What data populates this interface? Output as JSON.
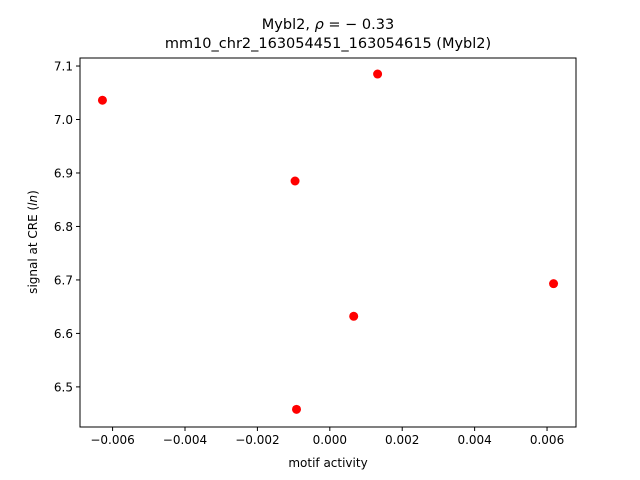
{
  "chart_data": {
    "type": "scatter",
    "title_line1_prefix": "Mybl2, ",
    "title_line1_rho": "ρ",
    "title_line1_suffix": " = − 0.33",
    "title_line2": "mm10_chr2_163054451_163054615 (Mybl2)",
    "xlabel": "motif activity",
    "ylabel_prefix": "signal at CRE (",
    "ylabel_italic": "ln",
    "ylabel_suffix": ")",
    "xlim": [
      -0.0069,
      0.0068
    ],
    "ylim": [
      6.425,
      7.115
    ],
    "x_ticks": [
      -0.006,
      -0.004,
      -0.002,
      0.0,
      0.002,
      0.004,
      0.006
    ],
    "x_tick_labels": [
      "−0.006",
      "−0.004",
      "−0.002",
      "0.000",
      "0.002",
      "0.004",
      "0.006"
    ],
    "y_ticks": [
      6.5,
      6.6,
      6.7,
      6.8,
      6.9,
      7.0,
      7.1
    ],
    "y_tick_labels": [
      "6.5",
      "6.6",
      "6.7",
      "6.8",
      "6.9",
      "7.0",
      "7.1"
    ],
    "marker_color": "#ff0000",
    "grid": false,
    "points": [
      {
        "x": -0.00628,
        "y": 7.036
      },
      {
        "x": 0.00132,
        "y": 7.085
      },
      {
        "x": -0.00096,
        "y": 6.885
      },
      {
        "x": 0.00618,
        "y": 6.693
      },
      {
        "x": 0.00066,
        "y": 6.632
      },
      {
        "x": -0.00092,
        "y": 6.458
      }
    ]
  }
}
